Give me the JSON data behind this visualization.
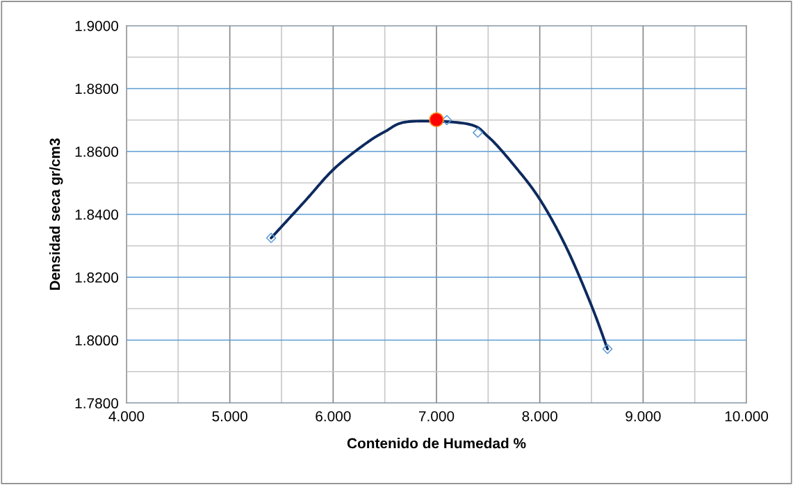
{
  "chart_data": {
    "type": "scatter",
    "xlabel": "Contenido de Humedad %",
    "ylabel": "Densidad seca gr/cm3",
    "xlim": [
      4.0,
      10.0
    ],
    "ylim": [
      1.78,
      1.9
    ],
    "xticks": [
      {
        "value": 4.0,
        "label": "4.000"
      },
      {
        "value": 4.5,
        "label": null
      },
      {
        "value": 5.0,
        "label": "5.000"
      },
      {
        "value": 5.5,
        "label": null
      },
      {
        "value": 6.0,
        "label": "6.000"
      },
      {
        "value": 6.5,
        "label": null
      },
      {
        "value": 7.0,
        "label": "7.000"
      },
      {
        "value": 7.5,
        "label": null
      },
      {
        "value": 8.0,
        "label": "8.000"
      },
      {
        "value": 8.5,
        "label": null
      },
      {
        "value": 9.0,
        "label": "9.000"
      },
      {
        "value": 9.5,
        "label": null
      },
      {
        "value": 10.0,
        "label": "10.000"
      }
    ],
    "yticks": [
      {
        "value": 1.78,
        "label": "1.7800"
      },
      {
        "value": 1.79,
        "label": null
      },
      {
        "value": 1.8,
        "label": "1.8000"
      },
      {
        "value": 1.81,
        "label": null
      },
      {
        "value": 1.82,
        "label": "1.8200"
      },
      {
        "value": 1.83,
        "label": null
      },
      {
        "value": 1.84,
        "label": "1.8400"
      },
      {
        "value": 1.85,
        "label": null
      },
      {
        "value": 1.86,
        "label": "1.8600"
      },
      {
        "value": 1.87,
        "label": null
      },
      {
        "value": 1.88,
        "label": "1.8800"
      },
      {
        "value": 1.89,
        "label": null
      },
      {
        "value": 1.9,
        "label": "1.9000"
      }
    ],
    "grid": true,
    "legend": false,
    "series": [
      {
        "type": "line",
        "color": "#0d2a5e",
        "marker": "none",
        "line_style": "solid",
        "x": [
          5.4,
          5.724,
          6.0,
          6.285,
          6.5,
          6.734,
          7.294,
          7.5,
          7.743,
          8.0,
          8.258,
          8.5,
          8.655
        ],
        "values": [
          1.8325,
          1.8441,
          1.8542,
          1.8618,
          1.8663,
          1.8695,
          1.8688,
          1.8647,
          1.8559,
          1.8448,
          1.8294,
          1.811,
          1.7972
        ]
      },
      {
        "color": "#5b9bd5",
        "marker": "diamond",
        "x": [
          5.4,
          7.1,
          7.4,
          8.655
        ],
        "values": [
          1.8325,
          1.87,
          1.866,
          1.7972
        ]
      },
      {
        "color": "#ff0000",
        "marker": "circle",
        "x": [
          7.0
        ],
        "values": [
          1.8701
        ]
      }
    ]
  }
}
